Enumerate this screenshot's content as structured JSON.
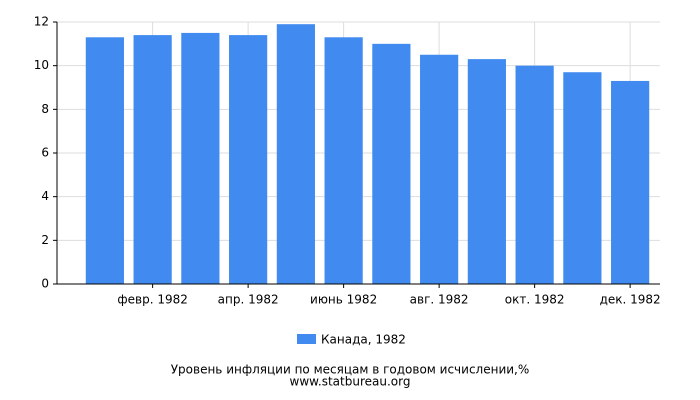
{
  "chart_data": {
    "type": "bar",
    "title": "Уровень инфляции по месяцам в годовом исчислении,%",
    "subtitle": "www.statbureau.org",
    "categories": [
      null,
      "февр. 1982",
      null,
      "апр. 1982",
      null,
      "июнь 1982",
      null,
      "авг. 1982",
      null,
      "окт. 1982",
      null,
      "дек. 1982"
    ],
    "series": [
      {
        "name": "Канада, 1982",
        "color": "#418bf0",
        "values": [
          11.3,
          11.4,
          11.5,
          11.4,
          11.9,
          11.3,
          11.0,
          10.5,
          10.3,
          10.0,
          9.7,
          9.3
        ]
      }
    ],
    "ylim": [
      0,
      12
    ],
    "yticks": [
      0,
      2,
      4,
      6,
      8,
      10,
      12
    ],
    "grid": true,
    "legend": "bottom"
  }
}
